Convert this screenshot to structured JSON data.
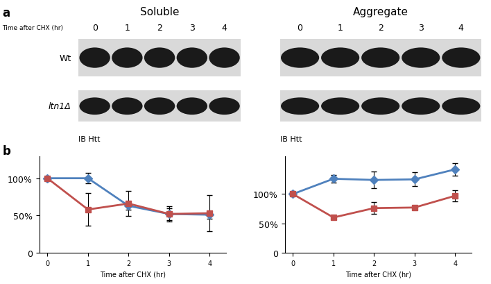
{
  "panel_a": {
    "label": "a",
    "time_label": "Time after CHX (hr)",
    "lanes": [
      "0",
      "1",
      "2",
      "3",
      "4"
    ],
    "blots": [
      {
        "title": "Soluble"
      },
      {
        "title": "Aggregate"
      }
    ],
    "rows": [
      "Wt",
      "ltn1Δ"
    ],
    "antibody": "IB Htt"
  },
  "panel_b": {
    "label": "b"
  },
  "chart_data": [
    {
      "type": "line",
      "x": [
        0,
        1,
        2,
        3,
        4
      ],
      "xlabel": "Time after CHX (hr)",
      "xlim": [
        -0.2,
        4.4
      ],
      "xticks": [
        0,
        1,
        2,
        3,
        4
      ],
      "ylim": [
        0,
        130
      ],
      "yticks": [
        0,
        {
          "value": 50,
          "label": "50%"
        },
        {
          "value": 100,
          "label": "100%"
        }
      ],
      "series": [
        {
          "color": "#4f81bd",
          "marker": "diamond",
          "values": [
            100,
            100,
            63,
            52,
            51
          ],
          "errors": [
            0,
            7,
            5,
            8,
            5
          ]
        },
        {
          "color": "#c0504d",
          "marker": "square",
          "values": [
            100,
            58,
            66,
            52,
            53
          ],
          "errors": [
            0,
            22,
            17,
            10,
            24
          ]
        }
      ]
    },
    {
      "type": "line",
      "x": [
        0,
        1,
        2,
        3,
        4
      ],
      "xlabel": "Time after CHX (hr)",
      "xlim": [
        -0.2,
        4.4
      ],
      "xticks": [
        0,
        1,
        2,
        3,
        4
      ],
      "ylim": [
        0,
        165
      ],
      "yticks": [
        0,
        {
          "value": 50,
          "label": "50%"
        },
        {
          "value": 100,
          "label": "100%"
        }
      ],
      "series": [
        {
          "color": "#4f81bd",
          "marker": "diamond",
          "values": [
            100,
            126,
            124,
            125,
            142
          ],
          "errors": [
            0,
            6,
            14,
            12,
            11
          ]
        },
        {
          "color": "#c0504d",
          "marker": "square",
          "values": [
            100,
            60,
            76,
            77,
            97
          ],
          "errors": [
            0,
            0,
            10,
            0,
            9
          ]
        }
      ]
    }
  ]
}
